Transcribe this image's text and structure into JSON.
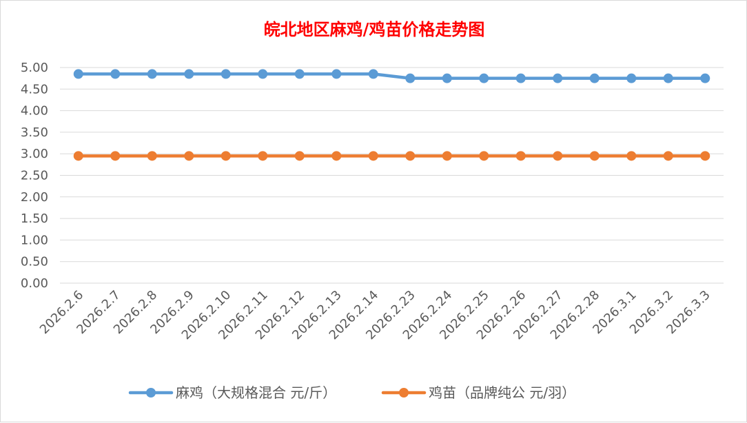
{
  "chart_data": {
    "type": "line",
    "title": "皖北地区麻鸡/鸡苗价格走势图",
    "categories": [
      "2026.2.6",
      "2026.2.7",
      "2026.2.8",
      "2026.2.9",
      "2026.2.10",
      "2026.2.11",
      "2026.2.12",
      "2026.2.13",
      "2026.2.14",
      "2026.2.23",
      "2026.2.24",
      "2026.2.25",
      "2026.2.26",
      "2026.2.27",
      "2026.2.28",
      "2026.3.1",
      "2026.3.2",
      "2026.3.3"
    ],
    "ylim": [
      0,
      5
    ],
    "yticks": [
      "0.00",
      "0.50",
      "1.00",
      "1.50",
      "2.00",
      "2.50",
      "3.00",
      "3.50",
      "4.00",
      "4.50",
      "5.00"
    ],
    "grid": true,
    "legend_position": "bottom",
    "series": [
      {
        "name": "麻鸡（大规格混合 元/斤）",
        "color": "#5b9bd5",
        "values": [
          4.85,
          4.85,
          4.85,
          4.85,
          4.85,
          4.85,
          4.85,
          4.85,
          4.85,
          4.75,
          4.75,
          4.75,
          4.75,
          4.75,
          4.75,
          4.75,
          4.75,
          4.75
        ]
      },
      {
        "name": "鸡苗（品牌纯公 元/羽）",
        "color": "#ed7d31",
        "values": [
          2.95,
          2.95,
          2.95,
          2.95,
          2.95,
          2.95,
          2.95,
          2.95,
          2.95,
          2.95,
          2.95,
          2.95,
          2.95,
          2.95,
          2.95,
          2.95,
          2.95,
          2.95
        ]
      }
    ]
  }
}
